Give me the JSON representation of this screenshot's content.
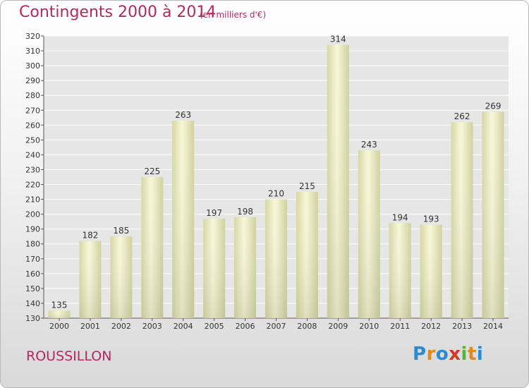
{
  "title": "Contingents 2000 à 2014",
  "subtitle": "(en milliers d'€)",
  "region": "ROUSSILLON",
  "logo": {
    "letters": [
      "P",
      "r",
      "o",
      "x",
      "i",
      "t",
      "i"
    ],
    "brand_colors": [
      "#2a8ad4",
      "#e08a1a",
      "#2a8ad4",
      "#d9342b",
      "#58b23a",
      "#e08a1a",
      "#2a8ad4"
    ]
  },
  "colors": {
    "accent": "#b5285e",
    "bar": "#f0f0c8",
    "grid": "#ffffff"
  },
  "chart_data": {
    "type": "bar",
    "title": "Contingents 2000 à 2014",
    "subtitle": "(en milliers d'€)",
    "xlabel": "",
    "ylabel": "",
    "categories": [
      "2000",
      "2001",
      "2002",
      "2003",
      "2004",
      "2005",
      "2006",
      "2007",
      "2008",
      "2009",
      "2010",
      "2011",
      "2012",
      "2013",
      "2014"
    ],
    "values": [
      135,
      182,
      185,
      225,
      263,
      197,
      198,
      210,
      215,
      314,
      243,
      194,
      193,
      262,
      269
    ],
    "ylim": [
      130,
      320
    ],
    "yticks": [
      130,
      140,
      150,
      160,
      170,
      180,
      190,
      200,
      210,
      220,
      230,
      240,
      250,
      260,
      270,
      280,
      290,
      300,
      310,
      320
    ],
    "grid": true,
    "legend": "none"
  }
}
